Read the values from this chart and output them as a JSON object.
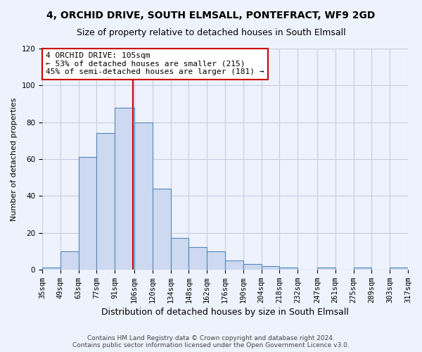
{
  "title": "4, ORCHID DRIVE, SOUTH ELMSALL, PONTEFRACT, WF9 2GD",
  "subtitle": "Size of property relative to detached houses in South Elmsall",
  "xlabel": "Distribution of detached houses by size in South Elmsall",
  "ylabel": "Number of detached properties",
  "bin_labels": [
    "35sqm",
    "49sqm",
    "63sqm",
    "77sqm",
    "91sqm",
    "106sqm",
    "120sqm",
    "134sqm",
    "148sqm",
    "162sqm",
    "176sqm",
    "190sqm",
    "204sqm",
    "218sqm",
    "232sqm",
    "247sqm",
    "261sqm",
    "275sqm",
    "289sqm",
    "303sqm",
    "317sqm"
  ],
  "bin_edges": [
    35,
    49,
    63,
    77,
    91,
    106,
    120,
    134,
    148,
    162,
    176,
    190,
    204,
    218,
    232,
    247,
    261,
    275,
    289,
    303,
    317
  ],
  "bar_heights": [
    1,
    10,
    61,
    74,
    88,
    80,
    44,
    17,
    12,
    10,
    5,
    3,
    2,
    1,
    0,
    1,
    0,
    1,
    0,
    1,
    1
  ],
  "bar_color": "#ccd9f0",
  "bar_edge_color": "#5588bb",
  "property_size": 105,
  "red_line_color": "#cc0000",
  "annotation_line1": "4 ORCHID DRIVE: 105sqm",
  "annotation_line2": "← 53% of detached houses are smaller (215)",
  "annotation_line3": "45% of semi-detached houses are larger (181) →",
  "annotation_box_edge": "#cc0000",
  "annotation_box_face": "#ffffff",
  "ylim": [
    0,
    120
  ],
  "xlim_left": 35,
  "xlim_right": 317,
  "footer": "Contains HM Land Registry data © Crown copyright and database right 2024.\nContains public sector information licensed under the Open Government Licence v3.0.",
  "background_color": "#eef2fc",
  "grid_color": "#c8cce0",
  "title_fontsize": 10,
  "subtitle_fontsize": 9,
  "xlabel_fontsize": 9,
  "ylabel_fontsize": 8,
  "tick_fontsize": 7.5,
  "annotation_fontsize": 8,
  "footer_fontsize": 6.5
}
